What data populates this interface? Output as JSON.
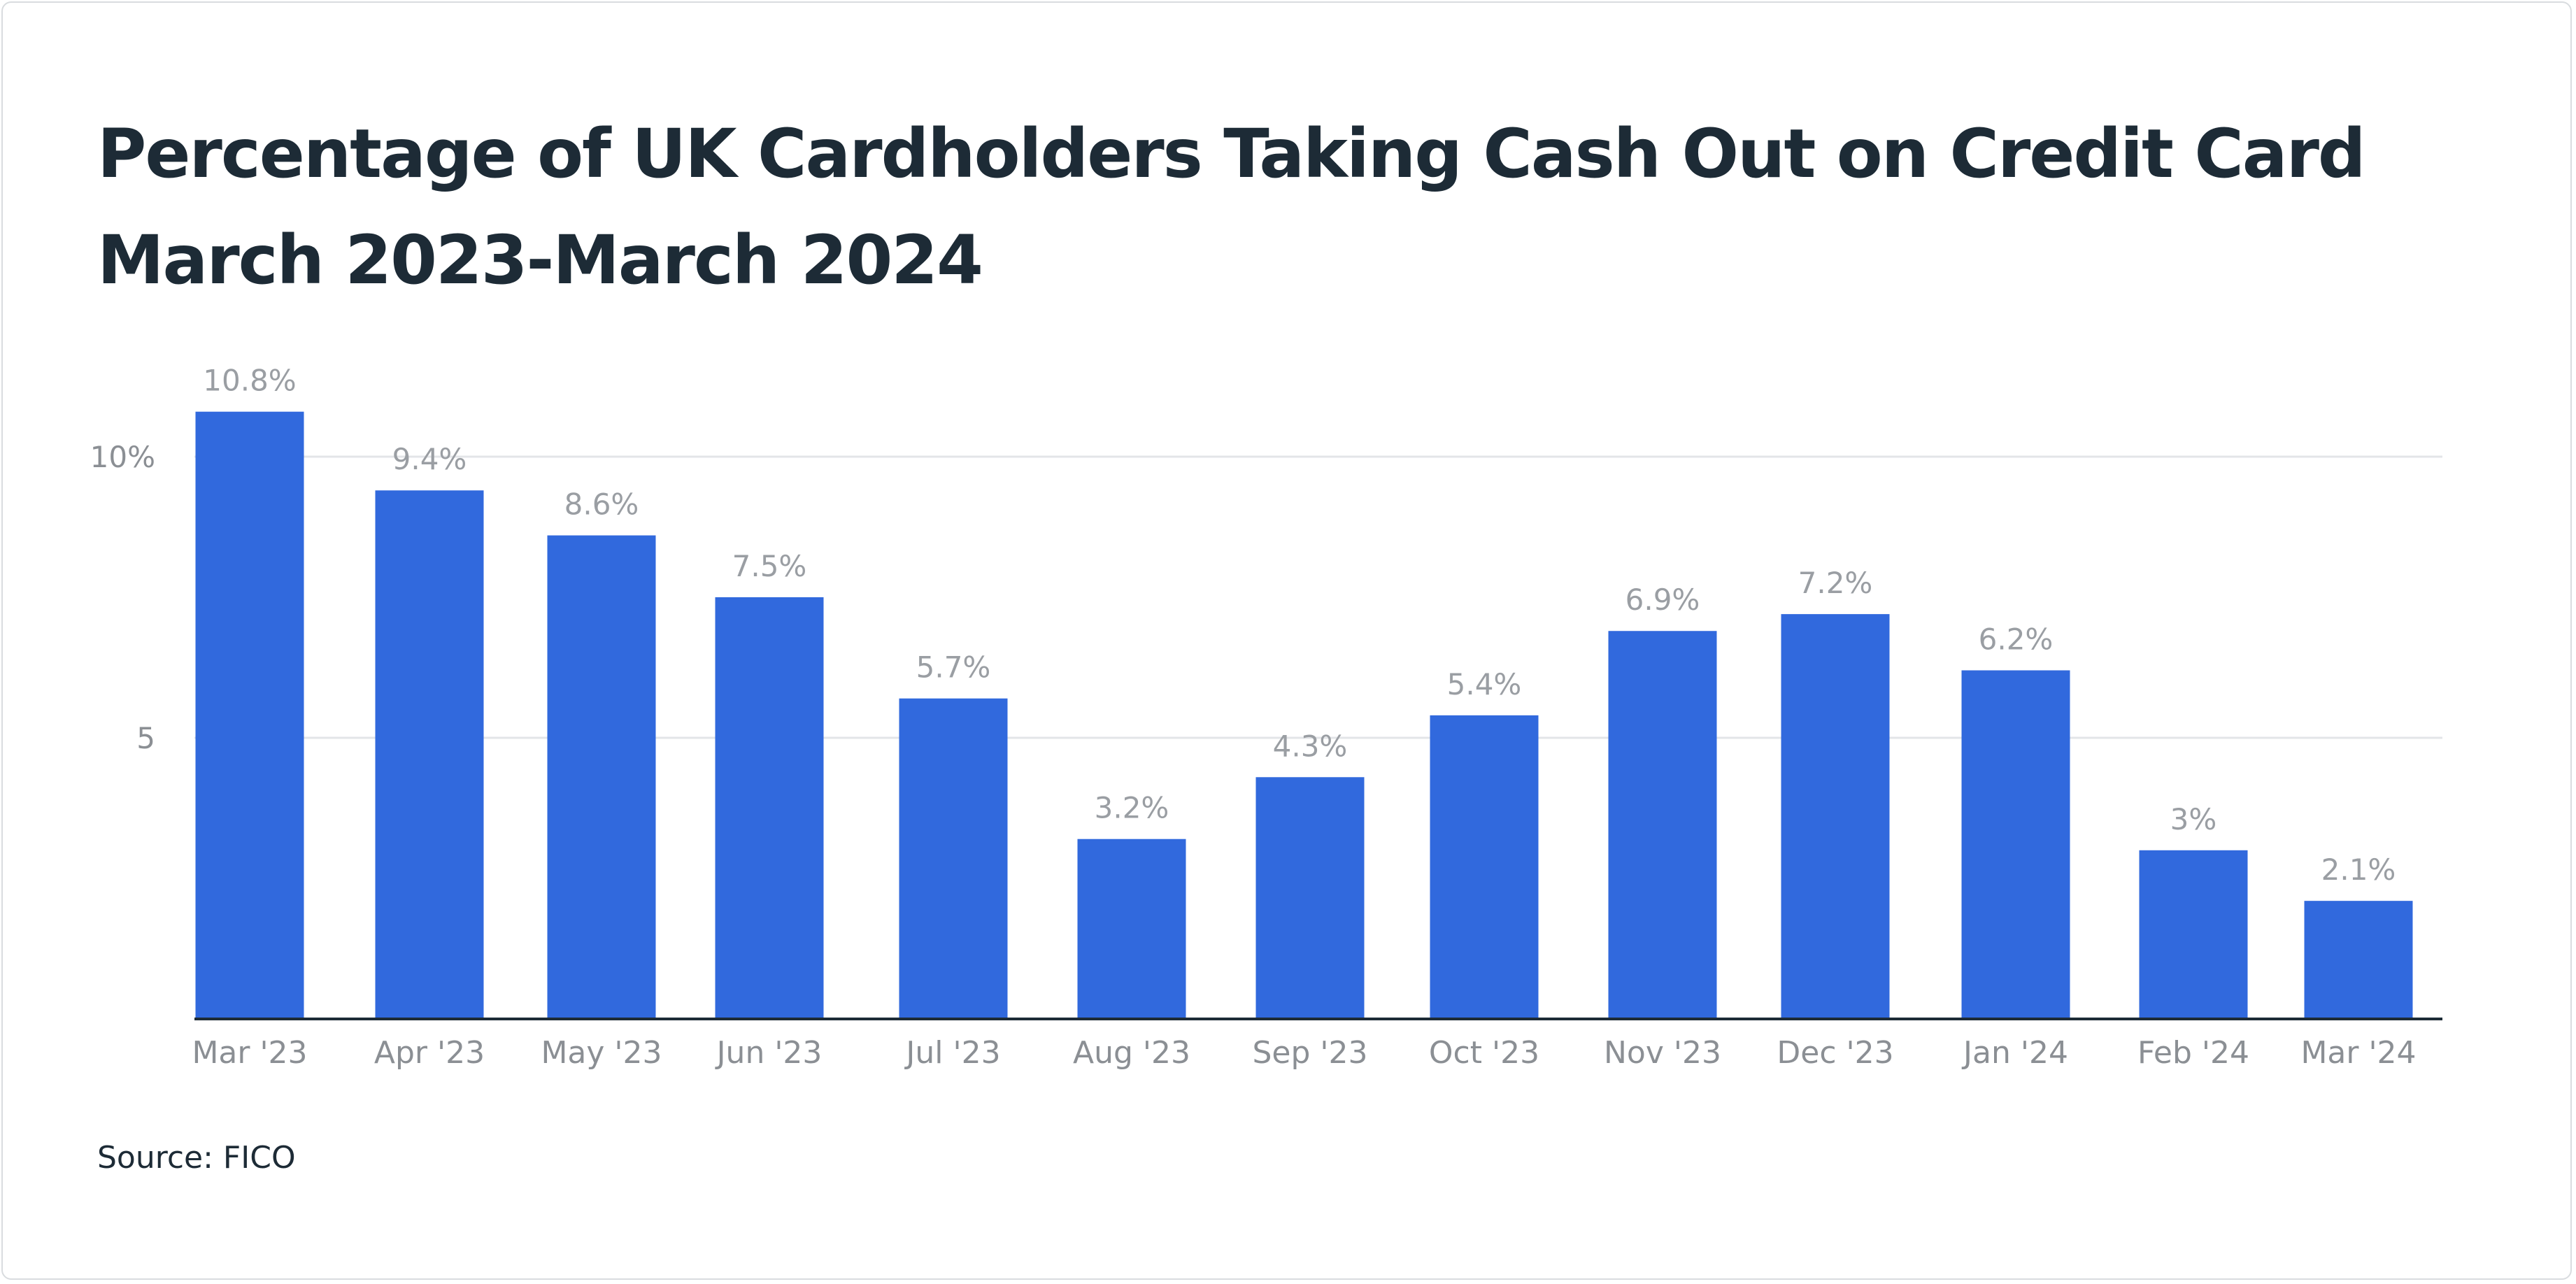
{
  "chart_data": {
    "type": "bar",
    "title": "Percentage of UK Cardholders Taking Cash Out on Credit Card",
    "subtitle": "March 2023-March 2024",
    "categories": [
      "Mar '23",
      "Apr '23",
      "May '23",
      "Jun '23",
      "Jul '23",
      "Aug '23",
      "Sep '23",
      "Oct '23",
      "Nov '23",
      "Dec '23",
      "Jan '24",
      "Feb '24",
      "Mar '24"
    ],
    "values": [
      10.8,
      9.4,
      8.6,
      7.5,
      5.7,
      3.2,
      4.3,
      5.4,
      6.9,
      7.2,
      6.2,
      3,
      2.1
    ],
    "data_labels": [
      "10.8%",
      "9.4%",
      "8.6%",
      "7.5%",
      "5.7%",
      "3.2%",
      "4.3%",
      "5.4%",
      "6.9%",
      "7.2%",
      "6.2%",
      "3%",
      "2.1%"
    ],
    "y_ticks": [
      {
        "value": 5,
        "label": "5"
      },
      {
        "value": 10,
        "label": "10%"
      }
    ],
    "xlabel": "",
    "ylabel": "",
    "ylim": [
      0,
      10.8
    ],
    "grid": true,
    "legend": "none",
    "colors": {
      "bar": "#3169dd",
      "grid": "#e3e5e8",
      "axis": "#1d2b36",
      "tick_text": "#8b8f94",
      "label_text": "#9a9ea3",
      "title_text": "#1d2b36"
    }
  },
  "source": {
    "label": "Source: FICO"
  }
}
